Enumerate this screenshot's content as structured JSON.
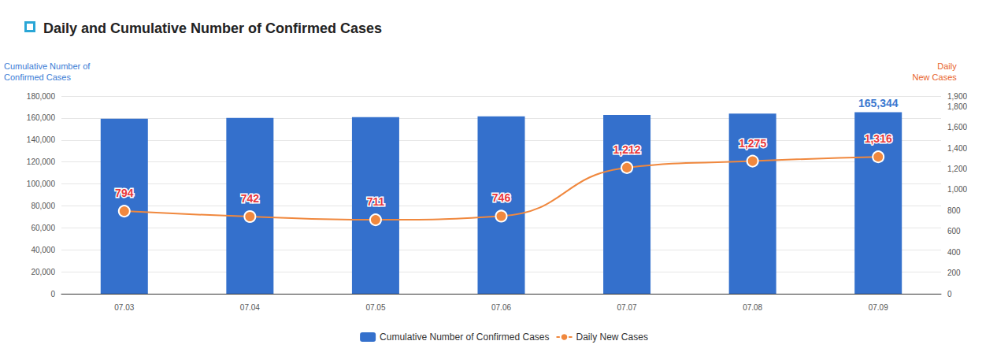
{
  "chart_data": {
    "type": "bar",
    "title": "Daily and Cumulative Number of Confirmed Cases",
    "ylabel": "Cumulative Number of\nConfirmed Cases",
    "y2label": "Daily\nNew Cases",
    "categories": [
      "07.03",
      "07.04",
      "07.05",
      "07.06",
      "07.07",
      "07.08",
      "07.09"
    ],
    "series": [
      {
        "name": "Cumulative Number of Confirmed Cases",
        "type": "bar",
        "color": "#3470cc",
        "values": [
          159342,
          160084,
          160795,
          161541,
          162753,
          164028,
          165344
        ],
        "value_labels": [
          null,
          null,
          null,
          null,
          null,
          null,
          "165,344"
        ]
      },
      {
        "name": "Daily New Cases",
        "type": "line",
        "axis": "y2",
        "color": "#f0883e",
        "marker": "circle",
        "line_style": "solid",
        "values": [
          794,
          742,
          711,
          746,
          1212,
          1275,
          1316
        ],
        "value_labels": [
          "794",
          "742",
          "711",
          "746",
          "1,212",
          "1,275",
          "1,316"
        ]
      }
    ],
    "ylim": [
      0,
      180000
    ],
    "yticks": [
      0,
      {
        "value": 20000,
        "label": "20,000"
      },
      {
        "value": 40000,
        "label": "40,000"
      },
      {
        "value": 60000,
        "label": "60,000"
      },
      {
        "value": 80000,
        "label": "80,000"
      },
      {
        "value": 100000,
        "label": "100,000"
      },
      {
        "value": 120000,
        "label": "120,000"
      },
      {
        "value": 140000,
        "label": "140,000"
      },
      {
        "value": 160000,
        "label": "160,000"
      },
      {
        "value": 180000,
        "label": "180,000"
      }
    ],
    "y2lim": [
      0,
      1900
    ],
    "y2ticks": [
      0,
      200,
      400,
      600,
      800,
      {
        "value": 1000,
        "label": "1,000"
      },
      {
        "value": 1200,
        "label": "1,200"
      },
      {
        "value": 1400,
        "label": "1,400"
      },
      {
        "value": 1600,
        "label": "1,600"
      },
      {
        "value": 1800,
        "label": "1,800"
      },
      {
        "value": 1900,
        "label": "1,900"
      }
    ],
    "grid": true,
    "legend": "bottom",
    "data_labels": true
  }
}
